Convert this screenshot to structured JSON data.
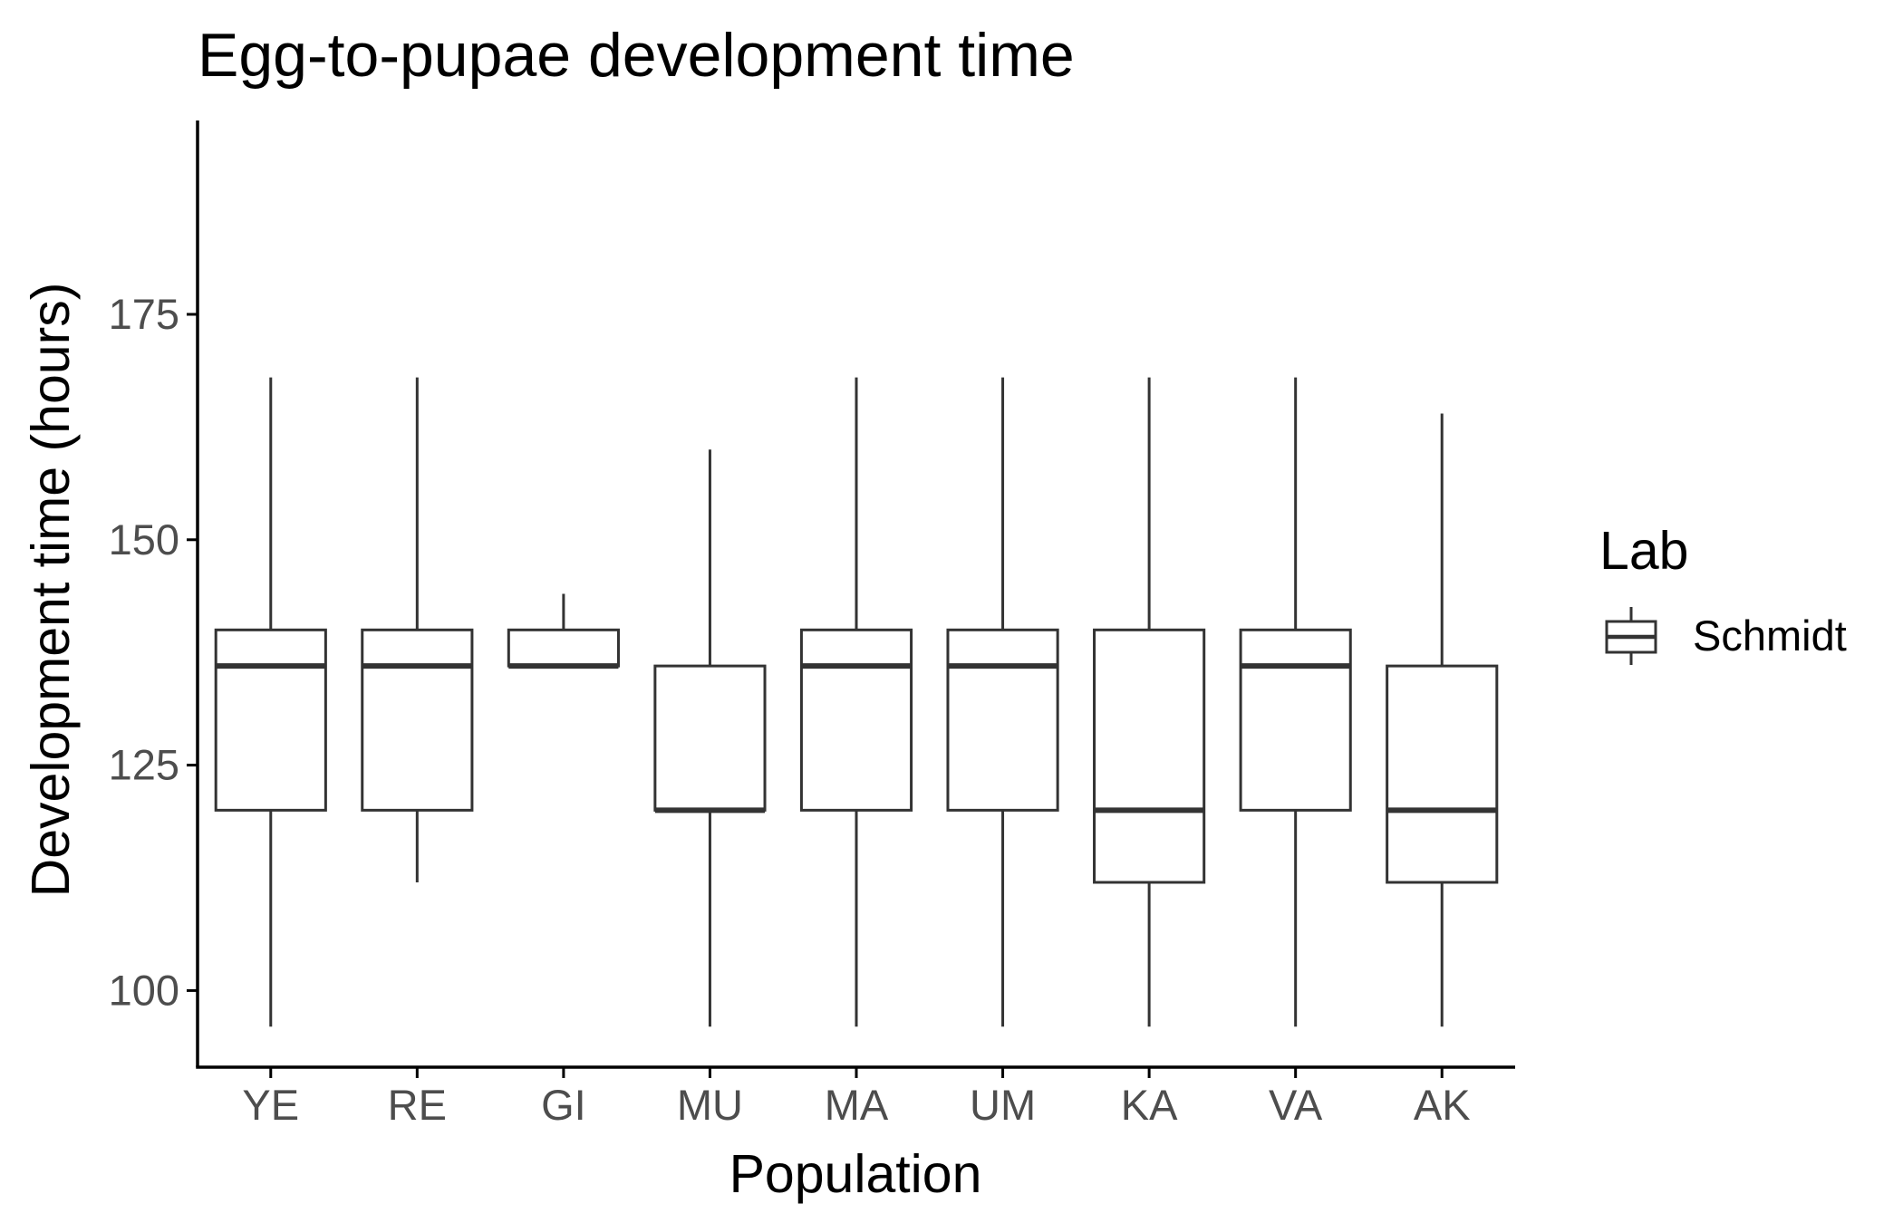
{
  "chart_data": {
    "type": "boxplot",
    "title": "Egg-to-pupae development time",
    "xlabel": "Population",
    "ylabel": "Development time (hours)",
    "categories": [
      "YE",
      "RE",
      "GI",
      "MU",
      "MA",
      "UM",
      "KA",
      "VA",
      "AK"
    ],
    "ylim": [
      91.5,
      196.5
    ],
    "yticks": [
      100,
      125,
      150,
      175
    ],
    "grid": false,
    "series": [
      {
        "name": "Schmidt",
        "boxes": [
          {
            "category": "YE",
            "whisker_low": 96,
            "q1": 120,
            "median": 136,
            "q3": 140,
            "whisker_high": 168
          },
          {
            "category": "RE",
            "whisker_low": 112,
            "q1": 120,
            "median": 136,
            "q3": 140,
            "whisker_high": 168
          },
          {
            "category": "GI",
            "whisker_low": 136,
            "q1": 136,
            "median": 136,
            "q3": 140,
            "whisker_high": 144
          },
          {
            "category": "MU",
            "whisker_low": 96,
            "q1": 120,
            "median": 120,
            "q3": 136,
            "whisker_high": 160
          },
          {
            "category": "MA",
            "whisker_low": 96,
            "q1": 120,
            "median": 136,
            "q3": 140,
            "whisker_high": 168
          },
          {
            "category": "UM",
            "whisker_low": 96,
            "q1": 120,
            "median": 136,
            "q3": 140,
            "whisker_high": 168
          },
          {
            "category": "KA",
            "whisker_low": 96,
            "q1": 112,
            "median": 120,
            "q3": 140,
            "whisker_high": 168
          },
          {
            "category": "VA",
            "whisker_low": 96,
            "q1": 120,
            "median": 136,
            "q3": 140,
            "whisker_high": 168
          },
          {
            "category": "AK",
            "whisker_low": 96,
            "q1": 112,
            "median": 120,
            "q3": 136,
            "whisker_high": 164
          }
        ]
      }
    ],
    "legend": {
      "title": "Lab",
      "placement": "right",
      "entries": [
        "Schmidt"
      ]
    },
    "colors": {
      "box_stroke": "#333333",
      "box_fill": "#ffffff",
      "axis": "#000000",
      "tick_label": "#4d4d4d"
    }
  }
}
